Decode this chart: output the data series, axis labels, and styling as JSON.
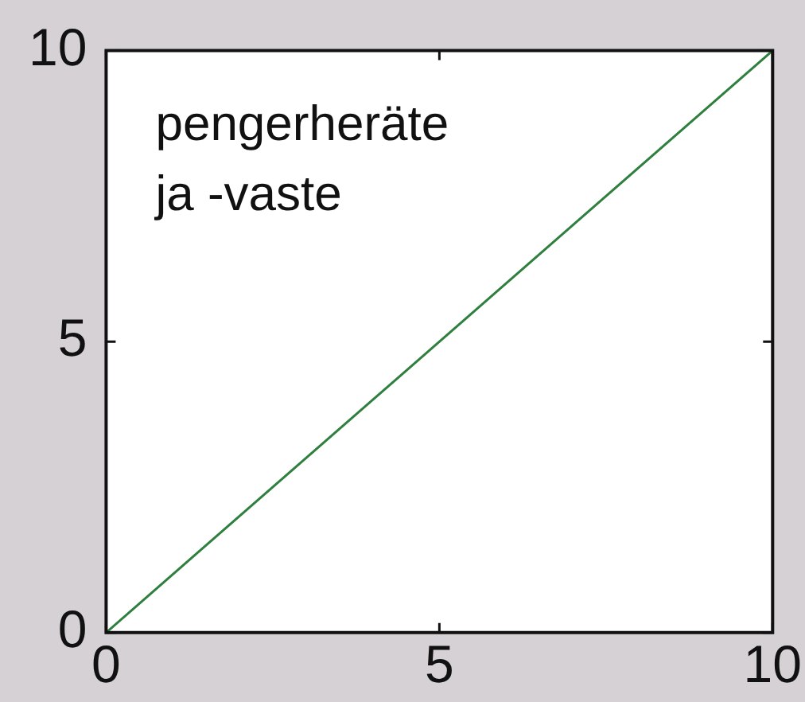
{
  "chart_data": {
    "type": "line",
    "x": [
      0,
      10
    ],
    "values": [
      0,
      10
    ],
    "color": "#2f7f3f",
    "xlim": [
      0,
      10
    ],
    "ylim": [
      0,
      10
    ],
    "xticks": [
      0,
      5,
      10
    ],
    "yticks": [
      0,
      5,
      10
    ],
    "marker": "none",
    "line_style": "solid",
    "annotations": [
      "pengerheräte\nja -vaste"
    ]
  }
}
